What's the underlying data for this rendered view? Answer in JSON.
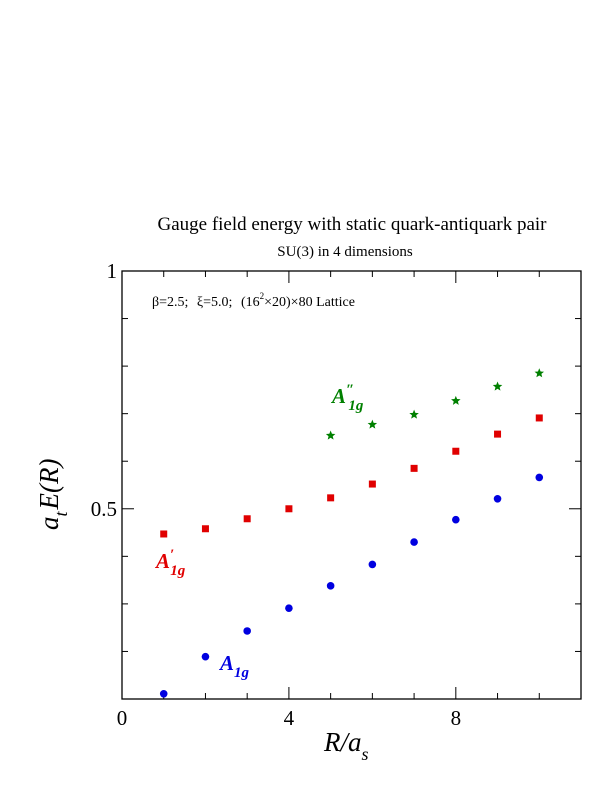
{
  "chart_data": {
    "type": "scatter",
    "title": "Gauge field energy with static quark-antiquark pair",
    "subtitle": "SU(3) in 4 dimensions",
    "annotation": {
      "beta": "β=2.5;",
      "xi": "ξ=5.0;",
      "lattice_open": "(16",
      "lattice_exp": "2",
      "lattice_close": "×20)×80 Lattice"
    },
    "xlabel": {
      "main": "R/a",
      "sub": "s"
    },
    "ylabel": {
      "pre": "a",
      "sub": "t",
      "main": "E(R)"
    },
    "xlim": [
      0,
      11
    ],
    "ylim": [
      0.1,
      1.0
    ],
    "x_ticks": [
      {
        "value": 0,
        "label": "0"
      },
      {
        "value": 4,
        "label": "4"
      },
      {
        "value": 8,
        "label": "8"
      }
    ],
    "y_ticks": [
      {
        "value": 0.5,
        "label": "0.5"
      },
      {
        "value": 1.0,
        "label": "1"
      }
    ],
    "grid": false,
    "series": [
      {
        "name": "A1g",
        "label": {
          "main": "A",
          "sub": "1g",
          "prime": ""
        },
        "color": "#0000e0",
        "marker": "circle",
        "x": [
          1,
          2,
          3,
          4,
          5,
          6,
          7,
          8,
          9,
          10
        ],
        "y": [
          0.111,
          0.189,
          0.243,
          0.291,
          0.338,
          0.383,
          0.43,
          0.477,
          0.521,
          0.566
        ]
      },
      {
        "name": "A1g'",
        "label": {
          "main": "A",
          "sub": "1g",
          "prime": "′"
        },
        "color": "#e00000",
        "marker": "square",
        "x": [
          1,
          2,
          3,
          4,
          5,
          6,
          7,
          8,
          9,
          10
        ],
        "y": [
          0.447,
          0.458,
          0.479,
          0.5,
          0.523,
          0.552,
          0.585,
          0.621,
          0.657,
          0.691
        ]
      },
      {
        "name": "A1g''",
        "label": {
          "main": "A",
          "sub": "1g",
          "prime": "″"
        },
        "color": "#008000",
        "marker": "star",
        "x": [
          5,
          6,
          7,
          8,
          9,
          10
        ],
        "y": [
          0.654,
          0.677,
          0.698,
          0.727,
          0.757,
          0.785
        ]
      }
    ]
  }
}
